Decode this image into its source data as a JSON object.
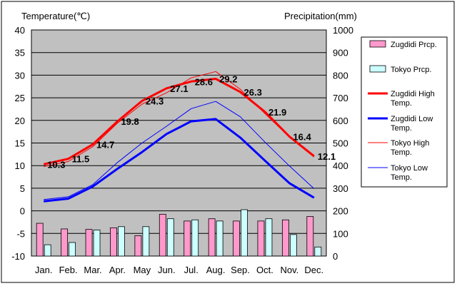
{
  "chart_data": {
    "type": "bar+line",
    "left_axis_label": "Temperature(℃)",
    "right_axis_label": "Precipitation(mm)",
    "ylim_left": [
      -10,
      40
    ],
    "yticks_left": [
      "-10",
      "-5",
      "0",
      "5",
      "10",
      "15",
      "20",
      "25",
      "30",
      "35",
      "40"
    ],
    "ylim_right": [
      0,
      1000
    ],
    "yticks_right": [
      "0",
      "100",
      "200",
      "300",
      "400",
      "500",
      "600",
      "700",
      "800",
      "900",
      "1000"
    ],
    "categories": [
      "Jan.",
      "Feb.",
      "Mar.",
      "Apr.",
      "May",
      "Jun.",
      "Jul.",
      "Aug.",
      "Sep.",
      "Oct.",
      "Nov.",
      "Dec."
    ],
    "grid": "horizontal",
    "plot_background": "#c0c0c0",
    "legend_position": "right",
    "bar_series": [
      {
        "name": "Zugdidi Prcp.",
        "color": "#ff99cc",
        "values": [
          145,
          120,
          118,
          125,
          90,
          185,
          155,
          165,
          155,
          155,
          160,
          175
        ]
      },
      {
        "name": "Tokyo Prcp.",
        "color": "#ccffff",
        "values": [
          50,
          60,
          115,
          130,
          130,
          165,
          160,
          155,
          205,
          165,
          95,
          40
        ]
      }
    ],
    "line_series": [
      {
        "name": "Zugdidi High Temp.",
        "color": "#ff0000",
        "width": 3,
        "values": [
          10.3,
          11.5,
          14.7,
          19.8,
          24.3,
          27.1,
          28.6,
          29.2,
          26.3,
          21.9,
          16.4,
          12.1
        ],
        "labels": [
          "10.3",
          "11.5",
          "14.7",
          "19.8",
          "24.3",
          "27.1",
          "28.6",
          "29.2",
          "26.3",
          "21.9",
          "16.4",
          "12.1"
        ]
      },
      {
        "name": "Zugdidi Low Temp.",
        "color": "#0000ff",
        "width": 3,
        "values": [
          2.1,
          2.7,
          5.4,
          9.3,
          13.0,
          17.0,
          19.8,
          20.3,
          16.2,
          11.1,
          6.1,
          2.9
        ]
      },
      {
        "name": "Tokyo High Temp.",
        "color": "#ff0000",
        "width": 1,
        "values": [
          9.8,
          10.9,
          14.2,
          19.4,
          23.6,
          26.1,
          29.4,
          30.8,
          26.9,
          21.5,
          16.3,
          11.9
        ]
      },
      {
        "name": "Tokyo Low Temp.",
        "color": "#0000ff",
        "width": 1,
        "values": [
          2.5,
          3.1,
          5.8,
          10.7,
          15.0,
          18.7,
          22.6,
          24.2,
          20.8,
          15.2,
          9.9,
          4.9
        ]
      }
    ]
  }
}
